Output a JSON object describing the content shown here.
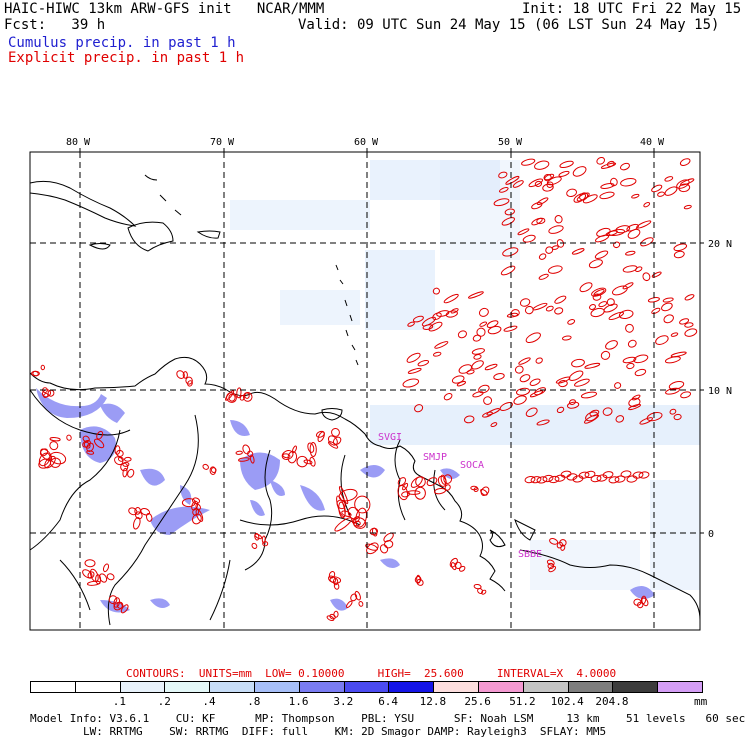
{
  "header": {
    "model_line": "HAIC-HIWC 13km ARW-GFS init   NCAR/MMM",
    "init_line": "Init: 18 UTC Fri 22 May 15",
    "fcst_line": "Fcst:   39 h",
    "valid_line": "Valid: 09 UTC Sun 24 May 15 (06 LST Sun 24 May 15)",
    "cumulus_label": "Cumulus precip. in past 1 h",
    "explicit_label": "Explicit precip. in past 1 h"
  },
  "map": {
    "lon_labels": [
      "80 W",
      "70 W",
      "60 W",
      "50 W",
      "40 W"
    ],
    "lat_labels": [
      "20 N",
      "10 N",
      "0"
    ],
    "station_labels": [
      "SVGI",
      "SMJP",
      "SOCA",
      "SBBE"
    ],
    "colors": {
      "cumulus": "#4b4bf0",
      "explicit": "#e00000",
      "land_outline": "#000000",
      "grid": "#000000"
    }
  },
  "contours": {
    "line": "CONTOURS:  UNITS=mm  LOW= 0.10000     HIGH=  25.600     INTERVAL=X  4.0000"
  },
  "colorbar": {
    "labels": [
      ".1",
      ".2",
      ".4",
      ".8",
      "1.6",
      "3.2",
      "6.4",
      "12.8",
      "25.6",
      "51.2",
      "102.4",
      "204.8"
    ],
    "units": "mm",
    "colors": [
      "#ffffff",
      "#ffffff",
      "#e8f2fb",
      "#e4f8f8",
      "#c7ddf7",
      "#a7bff8",
      "#7a7cf2",
      "#4b4bf0",
      "#1414e6",
      "#fcdede",
      "#f49ad2",
      "#c4c4c4",
      "#7e7e7e",
      "#3c3c3c",
      "#d49ef5"
    ]
  },
  "footer": {
    "line1": "Model Info: V3.6.1    CU: KF      MP: Thompson    PBL: YSU      SF: Noah LSM     13 km    51 levels   60 sec",
    "line2": "        LW: RRTMG    SW: RRTMG  DIFF: full    KM: 2D Smagor DAMP: Rayleigh3  SFLAY: MM5"
  }
}
